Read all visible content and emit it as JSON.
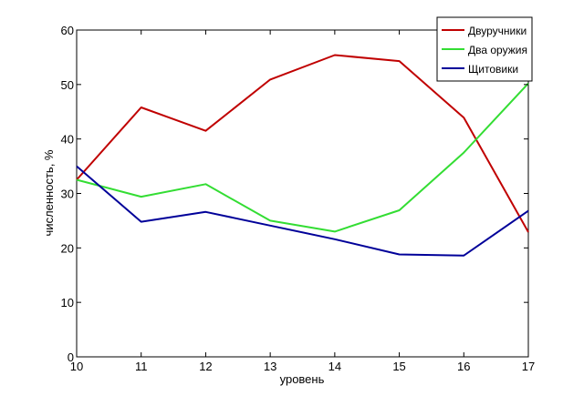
{
  "chart_data": {
    "type": "line",
    "title": "",
    "xlabel": "уровень",
    "ylabel": "численность, %",
    "x": [
      10,
      11,
      12,
      13,
      14,
      15,
      16,
      17
    ],
    "xlim": [
      10,
      17
    ],
    "ylim": [
      0,
      60
    ],
    "xticks": [
      10,
      11,
      12,
      13,
      14,
      15,
      16,
      17
    ],
    "yticks": [
      0,
      10,
      20,
      30,
      40,
      50,
      60
    ],
    "grid": false,
    "legend_position": "top-right",
    "series": [
      {
        "name": "Двуручники",
        "color": "#c00000",
        "values": [
          32.5,
          45.8,
          41.5,
          50.9,
          55.4,
          54.3,
          43.9,
          22.9
        ]
      },
      {
        "name": "Два оружия",
        "color": "#33dd33",
        "values": [
          32.5,
          29.4,
          31.7,
          25.0,
          23.0,
          26.9,
          37.5,
          50.2
        ]
      },
      {
        "name": "Щитовики",
        "color": "#000099",
        "values": [
          35.0,
          24.8,
          26.6,
          24.1,
          21.6,
          18.8,
          18.6,
          26.8
        ]
      }
    ]
  }
}
